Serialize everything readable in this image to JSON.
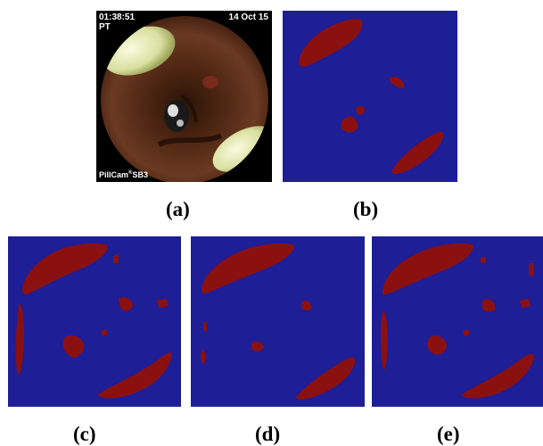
{
  "figure": {
    "panels": [
      {
        "caption": "(a)"
      },
      {
        "caption": "(b)"
      },
      {
        "caption": "(c)"
      },
      {
        "caption": "(d)"
      },
      {
        "caption": "(e)"
      }
    ],
    "photo_overlay": {
      "time": "01:38:51",
      "date": "14 Oct 15",
      "position": "PT",
      "device": "PillCam",
      "registered": "®",
      "model": "SB3"
    },
    "colors": {
      "background_class": "#1e1e96",
      "foreground_class": "#8b1010"
    }
  }
}
